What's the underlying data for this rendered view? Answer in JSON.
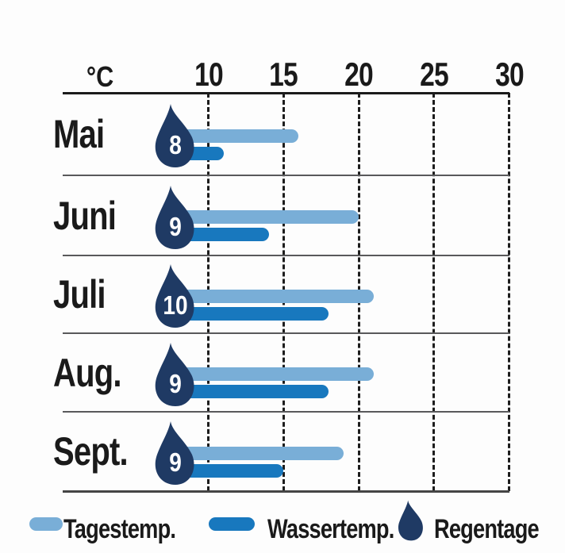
{
  "chart_data": {
    "type": "bar",
    "orientation": "horizontal",
    "title": "",
    "unit_label": "°C",
    "x_ticks": [
      10,
      15,
      20,
      25,
      30
    ],
    "xlim": [
      0,
      30
    ],
    "grid": "dashed-vertical",
    "categories": [
      "Mai",
      "Juni",
      "Juli",
      "Aug.",
      "Sept."
    ],
    "series": [
      {
        "name": "Tagestemp.",
        "values": [
          16,
          20,
          21,
          21,
          19
        ],
        "color": "#79AED7"
      },
      {
        "name": "Wassertemp.",
        "values": [
          11,
          14,
          18,
          18,
          15
        ],
        "color": "#1878BE"
      }
    ],
    "rain_days": {
      "name": "Regentage",
      "values": [
        8,
        9,
        10,
        9,
        9
      ],
      "color": "#1F3A64"
    },
    "legend": [
      "Tagestemp.",
      "Wassertemp.",
      "Regentage"
    ],
    "legend_position": "bottom"
  },
  "colors": {
    "day_temp": "#79AED7",
    "water_temp": "#1878BE",
    "rain_drop": "#1F3A64",
    "text": "#1A1A1A",
    "separator": "#59595B",
    "background": "#FDFDFD"
  }
}
